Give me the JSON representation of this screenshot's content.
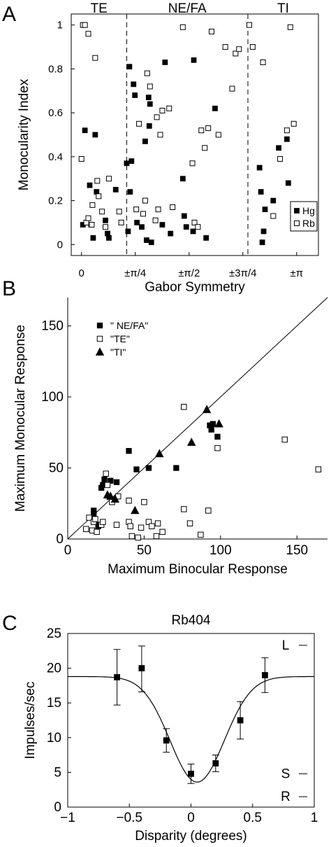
{
  "chart_data": [
    {
      "panel": "A",
      "type": "scatter",
      "xlabel": "Gabor Symmetry",
      "ylabel": "Monocularity Index",
      "xlim": [
        -0.15,
        3.46
      ],
      "ylim": [
        -0.05,
        1.05
      ],
      "x_ticks": [
        {
          "v": 0,
          "label": "0"
        },
        {
          "v": 0.785,
          "label": "±π/4"
        },
        {
          "v": 1.571,
          "label": "±π/2"
        },
        {
          "v": 2.356,
          "label": "±3π/4"
        },
        {
          "v": 3.142,
          "label": "±π"
        }
      ],
      "y_ticks": [
        0,
        0.2,
        0.4,
        0.6,
        0.8,
        1
      ],
      "dividers": [
        0.66,
        2.43
      ],
      "regions": [
        "TE",
        "NE/FA",
        "TI"
      ],
      "series": [
        {
          "name": "Hg",
          "marker": "filled-square",
          "points": [
            [
              0.02,
              0.09
            ],
            [
              0.05,
              0.52
            ],
            [
              0.12,
              0.27
            ],
            [
              0.14,
              0.09
            ],
            [
              0.17,
              0.03
            ],
            [
              0.2,
              0.5
            ],
            [
              0.22,
              0.24
            ],
            [
              0.35,
              0.11
            ],
            [
              0.38,
              0.05
            ],
            [
              0.4,
              0.03
            ],
            [
              0.5,
              0.25
            ],
            [
              0.66,
              0.37
            ],
            [
              0.68,
              0.06
            ],
            [
              0.7,
              0.81
            ],
            [
              0.71,
              0.24
            ],
            [
              0.73,
              0.38
            ],
            [
              0.76,
              0.73
            ],
            [
              0.78,
              0.68
            ],
            [
              0.81,
              0.1
            ],
            [
              0.88,
              0.08
            ],
            [
              0.93,
              0.47
            ],
            [
              0.95,
              0.02
            ],
            [
              0.98,
              0.67
            ],
            [
              0.99,
              0.54
            ],
            [
              1.0,
              0.64
            ],
            [
              1.02,
              0.01
            ],
            [
              1.18,
              0.09
            ],
            [
              1.22,
              0.83
            ],
            [
              1.3,
              0.05
            ],
            [
              1.48,
              0.3
            ],
            [
              1.5,
              0.13
            ],
            [
              1.53,
              0.08
            ],
            [
              1.63,
              0.06
            ],
            [
              1.64,
              0.84
            ],
            [
              1.82,
              0.03
            ],
            [
              1.95,
              0.62
            ],
            [
              2.6,
              0.35
            ],
            [
              2.62,
              0.24
            ],
            [
              2.64,
              0.01
            ],
            [
              2.66,
              0.06
            ],
            [
              2.68,
              0.16
            ],
            [
              2.8,
              0.2
            ],
            [
              2.88,
              0.44
            ],
            [
              3.0,
              0.48
            ],
            [
              3.02,
              0.28
            ]
          ]
        },
        {
          "name": "Rb",
          "marker": "open-square",
          "points": [
            [
              0.0,
              0.39
            ],
            [
              0.02,
              1.0
            ],
            [
              0.05,
              1.0
            ],
            [
              0.07,
              0.1
            ],
            [
              0.1,
              0.12
            ],
            [
              0.1,
              0.96
            ],
            [
              0.15,
              0.09
            ],
            [
              0.16,
              0.18
            ],
            [
              0.2,
              0.85
            ],
            [
              0.23,
              0.29
            ],
            [
              0.25,
              0.22
            ],
            [
              0.3,
              0.15
            ],
            [
              0.35,
              0.08
            ],
            [
              0.4,
              0.3
            ],
            [
              0.55,
              0.15
            ],
            [
              0.58,
              0.1
            ],
            [
              0.8,
              0.16
            ],
            [
              0.84,
              0.55
            ],
            [
              0.9,
              0.14
            ],
            [
              0.93,
              0.2
            ],
            [
              0.96,
              0.78
            ],
            [
              1.0,
              0.72
            ],
            [
              1.08,
              0.11
            ],
            [
              1.1,
              0.58
            ],
            [
              1.12,
              0.16
            ],
            [
              1.15,
              0.5
            ],
            [
              1.18,
              0.61
            ],
            [
              1.28,
              0.62
            ],
            [
              1.33,
              0.17
            ],
            [
              1.48,
              0.99
            ],
            [
              1.62,
              0.37
            ],
            [
              1.65,
              0.1
            ],
            [
              1.7,
              0.08
            ],
            [
              1.75,
              0.52
            ],
            [
              1.8,
              0.44
            ],
            [
              1.85,
              0.53
            ],
            [
              1.9,
              0.97
            ],
            [
              2.0,
              0.5
            ],
            [
              2.1,
              0.9
            ],
            [
              2.2,
              0.71
            ],
            [
              2.25,
              0.87
            ],
            [
              2.3,
              0.89
            ],
            [
              2.45,
              1.0
            ],
            [
              2.5,
              0.9
            ],
            [
              2.65,
              0.83
            ],
            [
              2.8,
              0.13
            ],
            [
              2.9,
              0.39
            ],
            [
              3.0,
              0.52
            ],
            [
              3.05,
              0.99
            ],
            [
              3.1,
              0.55
            ]
          ]
        }
      ],
      "legend": {
        "position": "bottom-right",
        "entries": [
          "Hg",
          "Rb"
        ]
      }
    },
    {
      "panel": "B",
      "type": "scatter",
      "xlabel": "Maximum Binocular Response",
      "ylabel": "Maximum Monocular Response",
      "xlim": [
        0,
        170
      ],
      "ylim": [
        0,
        170
      ],
      "x_ticks": [
        0,
        50,
        100,
        150
      ],
      "y_ticks": [
        0,
        50,
        100,
        150
      ],
      "diagonal": true,
      "series": [
        {
          "name": "\" NE/FA\"",
          "marker": "filled-square",
          "points": [
            [
              17,
              20
            ],
            [
              17,
              18
            ],
            [
              20,
              10
            ],
            [
              20,
              9
            ],
            [
              22,
              36
            ],
            [
              23,
              38
            ],
            [
              24,
              42
            ],
            [
              28,
              41
            ],
            [
              32,
              40
            ],
            [
              40,
              62
            ],
            [
              45,
              49
            ],
            [
              53,
              50
            ],
            [
              71,
              50
            ],
            [
              93,
              80
            ],
            [
              94,
              77
            ],
            [
              95,
              81
            ],
            [
              98,
              72
            ]
          ]
        },
        {
          "name": "\"TE\"",
          "marker": "open-square",
          "points": [
            [
              12,
              7
            ],
            [
              14,
              15
            ],
            [
              16,
              6
            ],
            [
              17,
              12
            ],
            [
              18,
              14
            ],
            [
              19,
              5
            ],
            [
              22,
              10
            ],
            [
              23,
              12
            ],
            [
              25,
              46
            ],
            [
              26,
              38
            ],
            [
              29,
              26
            ],
            [
              32,
              10
            ],
            [
              33,
              30
            ],
            [
              40,
              27
            ],
            [
              40,
              12
            ],
            [
              41,
              9
            ],
            [
              42,
              2
            ],
            [
              46,
              1
            ],
            [
              48,
              8
            ],
            [
              50,
              26
            ],
            [
              53,
              12
            ],
            [
              55,
              9
            ],
            [
              58,
              2
            ],
            [
              59,
              11
            ],
            [
              62,
              5
            ],
            [
              76,
              93
            ],
            [
              76,
              21
            ],
            [
              80,
              11
            ],
            [
              87,
              3
            ],
            [
              92,
              20
            ],
            [
              98,
              64
            ],
            [
              142,
              70
            ],
            [
              164,
              49
            ]
          ]
        },
        {
          "name": "\"TI\"",
          "marker": "filled-triangle",
          "points": [
            [
              26,
              31
            ],
            [
              28,
              30
            ],
            [
              31,
              28
            ],
            [
              44,
              20
            ],
            [
              60,
              60
            ],
            [
              81,
              68
            ],
            [
              91,
              91
            ],
            [
              99,
              81
            ]
          ]
        }
      ],
      "legend": {
        "position": "top-left",
        "entries": [
          "\" NE/FA\"",
          "\"TE\"",
          "\"TI\""
        ]
      }
    },
    {
      "panel": "C",
      "type": "line",
      "title": "Rb404",
      "xlabel": "Disparity (degrees)",
      "ylabel": "Impulses/sec",
      "xlim": [
        -1,
        1
      ],
      "ylim": [
        0,
        25
      ],
      "x_ticks": [
        -1,
        -0.5,
        0,
        0.5,
        1
      ],
      "x_tick_labels": [
        "−1",
        "−0.5",
        "0",
        "0.5",
        "1"
      ],
      "y_ticks": [
        0,
        5,
        10,
        15,
        20,
        25
      ],
      "points": [
        {
          "x": -0.6,
          "y": 18.7,
          "err_lo": 14.7,
          "err_hi": 22.7
        },
        {
          "x": -0.4,
          "y": 20.0,
          "err_lo": 16.6,
          "err_hi": 23.2
        },
        {
          "x": -0.2,
          "y": 9.6,
          "err_lo": 7.9,
          "err_hi": 11.3
        },
        {
          "x": 0.0,
          "y": 4.8,
          "err_lo": 3.4,
          "err_hi": 6.2
        },
        {
          "x": 0.2,
          "y": 6.3,
          "err_lo": 5.1,
          "err_hi": 7.5
        },
        {
          "x": 0.4,
          "y": 12.5,
          "err_lo": 9.8,
          "err_hi": 15.2
        },
        {
          "x": 0.6,
          "y": 19.0,
          "err_lo": 16.5,
          "err_hi": 21.5
        }
      ],
      "fit": {
        "baseline": 18.8,
        "depth": 15.2,
        "center": 0.05,
        "width": 0.22
      },
      "markers": [
        {
          "label": "L",
          "y": 23.3
        },
        {
          "label": "S",
          "y": 4.8
        },
        {
          "label": "R",
          "y": 1.5
        }
      ]
    }
  ],
  "panel_labels": [
    "A",
    "B",
    "C"
  ]
}
